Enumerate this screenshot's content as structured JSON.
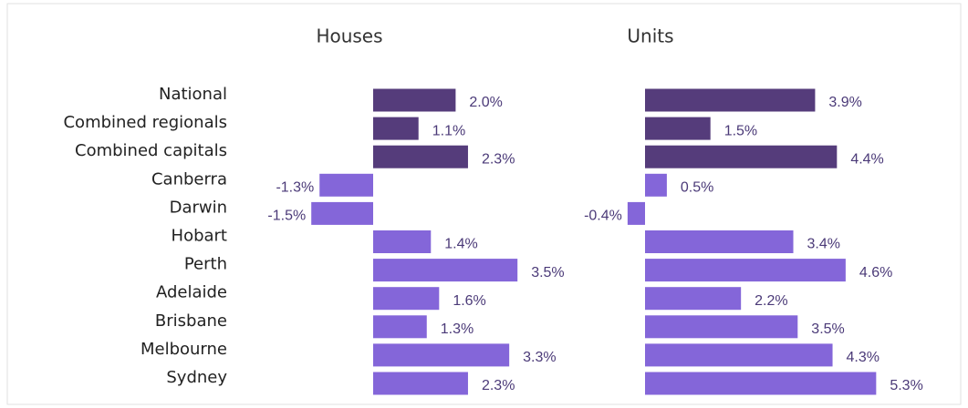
{
  "chart_data": {
    "type": "bar",
    "orientation": "horizontal",
    "categories": [
      "National",
      "Combined regionals",
      "Combined capitals",
      "Canberra",
      "Darwin",
      "Hobart",
      "Perth",
      "Adelaide",
      "Brisbane",
      "Melbourne",
      "Sydney"
    ],
    "category_colors": [
      "#553c7b",
      "#553c7b",
      "#553c7b",
      "#8466d9",
      "#8466d9",
      "#8466d9",
      "#8466d9",
      "#8466d9",
      "#8466d9",
      "#8466d9",
      "#8466d9"
    ],
    "series": [
      {
        "name": "Houses",
        "values": [
          2.0,
          1.1,
          2.3,
          -1.3,
          -1.5,
          1.4,
          3.5,
          1.6,
          1.3,
          3.3,
          2.3
        ],
        "value_labels": [
          "2.0%",
          "1.1%",
          "2.3%",
          "-1.3%",
          "-1.5%",
          "1.4%",
          "3.5%",
          "1.6%",
          "1.3%",
          "3.3%",
          "2.3%"
        ]
      },
      {
        "name": "Units",
        "values": [
          3.9,
          1.5,
          4.4,
          0.5,
          -0.4,
          3.4,
          4.6,
          2.2,
          3.5,
          4.3,
          5.3
        ],
        "value_labels": [
          "3.9%",
          "1.5%",
          "4.4%",
          "0.5%",
          "-0.4%",
          "3.4%",
          "4.6%",
          "2.2%",
          "3.5%",
          "4.3%",
          "5.3%"
        ]
      }
    ]
  }
}
